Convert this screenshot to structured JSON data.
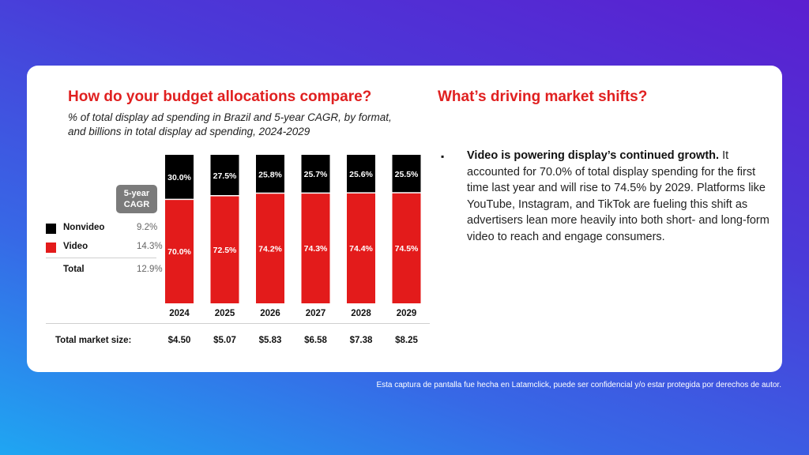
{
  "left_panel": {
    "title": "How do your budget allocations compare?",
    "subtitle": "% of total display ad spending in Brazil and 5-year CAGR, by format, and billions in total display ad spending, 2024-2029",
    "cagr_badge": [
      "5-year",
      "CAGR"
    ],
    "legend": [
      {
        "label": "Nonvideo",
        "cagr": "9.2%",
        "color": "#000000"
      },
      {
        "label": "Video",
        "cagr": "14.3%",
        "color": "#e31b1b"
      },
      {
        "label": "Total",
        "cagr": "12.9%",
        "color": null
      }
    ],
    "market_size_label": "Total market size:"
  },
  "right_panel": {
    "title": "What’s driving market shifts?",
    "bullet_icon": "square-bullet-icon",
    "bullet_bold": "Video is powering display’s continued growth.",
    "bullet_body": "It accounted for 70.0% of total display spending for the first time last year and will rise to 74.5% by 2029. Platforms like YouTube, Instagram, and TikTok are fueling this shift as advertisers lean more heavily into both short- and long-form video to reach and engage consumers."
  },
  "footer_note": "Esta captura de pantalla fue hecha en Latamclick, puede ser confidencial y/o estar protegida por derechos de autor.",
  "chart_data": {
    "type": "bar",
    "stacked": true,
    "normalized_percent": true,
    "title": "How do your budget allocations compare?",
    "subtitle": "% of total display ad spending in Brazil and 5-year CAGR, by format, and billions in total display ad spending, 2024-2029",
    "categories": [
      "2024",
      "2025",
      "2026",
      "2027",
      "2028",
      "2029"
    ],
    "series": [
      {
        "name": "Video",
        "color": "#e31b1b",
        "values": [
          70.0,
          72.5,
          74.2,
          74.3,
          74.4,
          74.5
        ],
        "labels": [
          "70.0%",
          "72.5%",
          "74.2%",
          "74.3%",
          "74.4%",
          "74.5%"
        ]
      },
      {
        "name": "Nonvideo",
        "color": "#000000",
        "values": [
          30.0,
          27.5,
          25.8,
          25.7,
          25.6,
          25.5
        ],
        "labels": [
          "30.0%",
          "27.5%",
          "25.8%",
          "25.7%",
          "25.6%",
          "25.5%"
        ]
      }
    ],
    "total_market_size": {
      "label": "Total market size:",
      "values": [
        "$4.50",
        "$5.07",
        "$5.83",
        "$6.58",
        "$7.38",
        "$8.25"
      ],
      "unit": "billions"
    },
    "cagr": {
      "Nonvideo": "9.2%",
      "Video": "14.3%",
      "Total": "12.9%"
    },
    "ylim": [
      0,
      100
    ],
    "xlabel": "",
    "ylabel": "",
    "grid": false,
    "legend": "left"
  }
}
